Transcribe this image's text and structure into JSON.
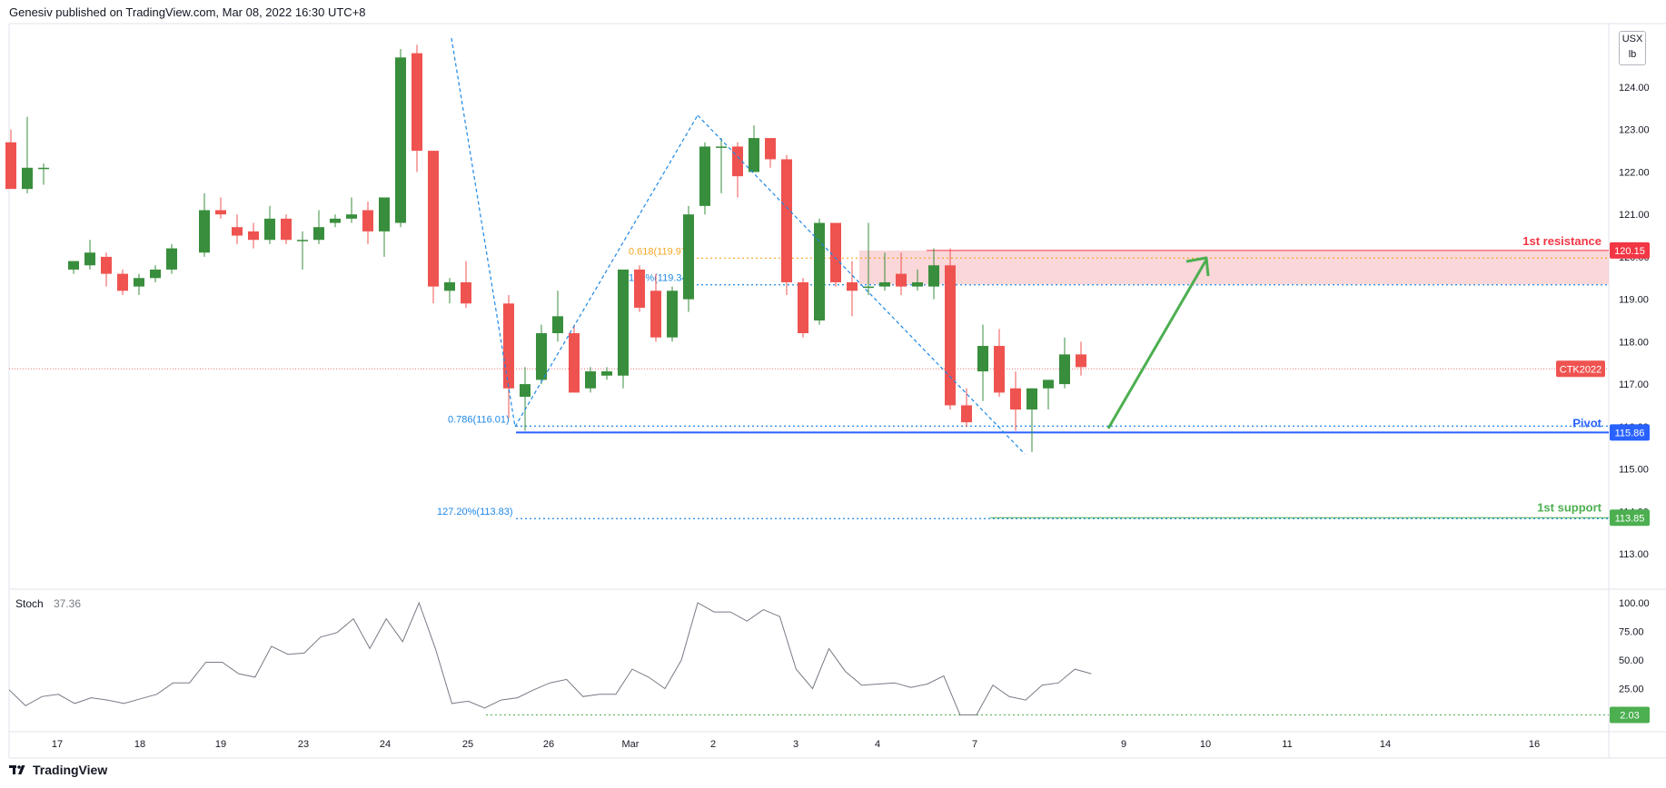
{
  "header": {
    "text": "Genesiv published on TradingView.com, Mar 08, 2022 16:30 UTC+8"
  },
  "footer": {
    "brand": "TradingView",
    "logo_icon": "tradingview-logo-icon"
  },
  "unit": {
    "currency": "USX",
    "unit": "lb"
  },
  "colors": {
    "up": "#388e3c",
    "down": "#ef5350",
    "blue": "#2962ff",
    "fib_blue": "#1e88e5",
    "orange": "#f5a623",
    "resistance_red": "#f23645",
    "support_green": "#4caf50",
    "zone_fill": "#f8c9cc",
    "stoch_line": "#787b86",
    "price_line": "#e57373"
  },
  "chart_data": [
    {
      "type": "candlestick",
      "instrument_label": "CTK2022",
      "y_ticks": [
        "124.00",
        "123.00",
        "122.00",
        "121.00",
        "120.00",
        "119.00",
        "118.00",
        "117.00",
        "116.00",
        "115.00",
        "114.00",
        "113.00"
      ],
      "ylim": [
        112.2,
        125.2
      ],
      "x_ticks": [
        "17",
        "18",
        "19",
        "23",
        "24",
        "25",
        "26",
        "Mar",
        "2",
        "3",
        "4",
        "7",
        "9",
        "10",
        "11",
        "14",
        "16"
      ],
      "candles": [
        {
          "o": 122.7,
          "h": 123.0,
          "l": 121.7,
          "c": 121.6
        },
        {
          "o": 121.6,
          "h": 123.3,
          "l": 121.5,
          "c": 122.1
        },
        {
          "o": 122.1,
          "h": 122.2,
          "l": 121.7,
          "c": 122.1
        },
        {
          "o": 119.7,
          "h": 119.9,
          "l": 119.6,
          "c": 119.9
        },
        {
          "o": 119.8,
          "h": 120.4,
          "l": 119.7,
          "c": 120.1
        },
        {
          "o": 120.0,
          "h": 120.1,
          "l": 119.3,
          "c": 119.6
        },
        {
          "o": 119.6,
          "h": 119.7,
          "l": 119.1,
          "c": 119.2
        },
        {
          "o": 119.3,
          "h": 119.6,
          "l": 119.1,
          "c": 119.5
        },
        {
          "o": 119.5,
          "h": 119.8,
          "l": 119.4,
          "c": 119.7
        },
        {
          "o": 119.7,
          "h": 120.3,
          "l": 119.6,
          "c": 120.2
        },
        {
          "o": 120.1,
          "h": 121.5,
          "l": 120.0,
          "c": 121.1
        },
        {
          "o": 121.1,
          "h": 121.4,
          "l": 120.9,
          "c": 121.0
        },
        {
          "o": 120.7,
          "h": 121.0,
          "l": 120.3,
          "c": 120.5
        },
        {
          "o": 120.6,
          "h": 120.8,
          "l": 120.2,
          "c": 120.4
        },
        {
          "o": 120.4,
          "h": 121.2,
          "l": 120.3,
          "c": 120.9
        },
        {
          "o": 120.9,
          "h": 121.0,
          "l": 120.3,
          "c": 120.4
        },
        {
          "o": 120.4,
          "h": 120.6,
          "l": 119.7,
          "c": 120.4
        },
        {
          "o": 120.4,
          "h": 121.1,
          "l": 120.3,
          "c": 120.7
        },
        {
          "o": 120.8,
          "h": 121.0,
          "l": 120.7,
          "c": 120.9
        },
        {
          "o": 120.9,
          "h": 121.4,
          "l": 120.8,
          "c": 121.0
        },
        {
          "o": 121.1,
          "h": 121.3,
          "l": 120.3,
          "c": 120.6
        },
        {
          "o": 120.6,
          "h": 121.4,
          "l": 120.0,
          "c": 121.4
        },
        {
          "o": 120.8,
          "h": 124.9,
          "l": 120.7,
          "c": 124.7
        },
        {
          "o": 124.8,
          "h": 125.0,
          "l": 122.0,
          "c": 122.5
        },
        {
          "o": 122.5,
          "h": 122.5,
          "l": 118.9,
          "c": 119.3
        },
        {
          "o": 119.2,
          "h": 119.5,
          "l": 118.9,
          "c": 119.4
        },
        {
          "o": 119.4,
          "h": 119.9,
          "l": 118.8,
          "c": 118.9
        },
        {
          "o": 118.9,
          "h": 119.1,
          "l": 116.2,
          "c": 116.9
        },
        {
          "o": 116.7,
          "h": 117.4,
          "l": 115.9,
          "c": 117.0
        },
        {
          "o": 117.1,
          "h": 118.4,
          "l": 117.0,
          "c": 118.2
        },
        {
          "o": 118.2,
          "h": 119.2,
          "l": 118.0,
          "c": 118.6
        },
        {
          "o": 118.2,
          "h": 118.4,
          "l": 116.8,
          "c": 116.8
        },
        {
          "o": 116.9,
          "h": 117.4,
          "l": 116.8,
          "c": 117.3
        },
        {
          "o": 117.2,
          "h": 117.4,
          "l": 117.1,
          "c": 117.3
        },
        {
          "o": 117.2,
          "h": 119.6,
          "l": 116.9,
          "c": 119.7
        },
        {
          "o": 119.7,
          "h": 119.8,
          "l": 118.7,
          "c": 118.8
        },
        {
          "o": 119.2,
          "h": 119.6,
          "l": 118.0,
          "c": 118.1
        },
        {
          "o": 118.1,
          "h": 119.3,
          "l": 118.0,
          "c": 119.2
        },
        {
          "o": 119.0,
          "h": 121.2,
          "l": 118.7,
          "c": 121.0
        },
        {
          "o": 121.2,
          "h": 122.7,
          "l": 121.0,
          "c": 122.6
        },
        {
          "o": 122.6,
          "h": 122.8,
          "l": 121.5,
          "c": 122.6
        },
        {
          "o": 122.6,
          "h": 122.7,
          "l": 121.4,
          "c": 121.9
        },
        {
          "o": 122.0,
          "h": 123.1,
          "l": 122.0,
          "c": 122.8
        },
        {
          "o": 122.8,
          "h": 122.8,
          "l": 122.1,
          "c": 122.3
        },
        {
          "o": 122.3,
          "h": 122.4,
          "l": 119.1,
          "c": 119.4
        },
        {
          "o": 119.4,
          "h": 119.5,
          "l": 118.1,
          "c": 118.2
        },
        {
          "o": 118.5,
          "h": 120.9,
          "l": 118.4,
          "c": 120.8
        },
        {
          "o": 120.8,
          "h": 120.8,
          "l": 119.3,
          "c": 119.4
        },
        {
          "o": 119.4,
          "h": 119.9,
          "l": 118.6,
          "c": 119.2
        },
        {
          "o": 119.3,
          "h": 120.8,
          "l": 119.1,
          "c": 119.3
        },
        {
          "o": 119.3,
          "h": 120.1,
          "l": 119.2,
          "c": 119.4
        },
        {
          "o": 119.6,
          "h": 120.1,
          "l": 119.1,
          "c": 119.3
        },
        {
          "o": 119.3,
          "h": 119.7,
          "l": 119.2,
          "c": 119.4
        },
        {
          "o": 119.3,
          "h": 120.2,
          "l": 119.0,
          "c": 119.8
        },
        {
          "o": 119.8,
          "h": 120.2,
          "l": 116.4,
          "c": 116.5
        },
        {
          "o": 116.5,
          "h": 116.9,
          "l": 116.0,
          "c": 116.1
        },
        {
          "o": 117.3,
          "h": 118.4,
          "l": 116.6,
          "c": 117.9
        },
        {
          "o": 117.9,
          "h": 118.3,
          "l": 116.7,
          "c": 116.8
        },
        {
          "o": 116.9,
          "h": 117.3,
          "l": 115.9,
          "c": 116.4
        },
        {
          "o": 116.4,
          "h": 116.9,
          "l": 115.4,
          "c": 116.9
        },
        {
          "o": 116.9,
          "h": 117.1,
          "l": 116.4,
          "c": 117.1
        },
        {
          "o": 117.0,
          "h": 118.1,
          "l": 116.9,
          "c": 117.7
        },
        {
          "o": 117.7,
          "h": 118.0,
          "l": 117.2,
          "c": 117.4
        }
      ],
      "levels": [
        {
          "label": "1st resistance",
          "value": 120.15,
          "value_text": "120.15"
        },
        {
          "label": "Pivot",
          "value": 115.86,
          "value_text": "115.86"
        },
        {
          "label": "1st support",
          "value": 113.85,
          "value_text": "113.85"
        }
      ],
      "resistance_zone": {
        "from": 119.35,
        "to": 120.15
      },
      "current_price": {
        "value": 117.36,
        "label": "CTK2022"
      },
      "fib_labels": [
        {
          "text": "0.618(119.97)",
          "value": 119.97
        },
        {
          "text": "100%(119.34)",
          "value": 119.34
        },
        {
          "text": "0.786(116.01)",
          "value": 116.01
        },
        {
          "text": "127.20%(113.83)",
          "value": 113.83
        }
      ]
    },
    {
      "type": "line",
      "name": "Stoch",
      "current_value": "37.36",
      "y_ticks": [
        "100.00",
        "75.00",
        "50.00",
        "25.00"
      ],
      "ylim": [
        0,
        100
      ],
      "level_marker": {
        "value": 2.03,
        "text": "2.03"
      },
      "values": [
        24,
        10,
        18,
        20,
        12,
        17,
        15,
        12,
        16,
        20,
        30,
        30,
        48,
        48,
        38,
        35,
        62,
        55,
        56,
        70,
        74,
        86,
        60,
        86,
        66,
        100,
        60,
        12,
        14,
        8,
        15,
        17,
        24,
        30,
        33,
        18,
        20,
        20,
        42,
        35,
        25,
        50,
        100,
        92,
        92,
        84,
        94,
        88,
        42,
        25,
        60,
        40,
        28,
        29,
        30,
        26,
        29,
        36,
        2,
        2,
        28,
        18,
        15,
        28,
        30,
        42,
        38
      ]
    }
  ]
}
